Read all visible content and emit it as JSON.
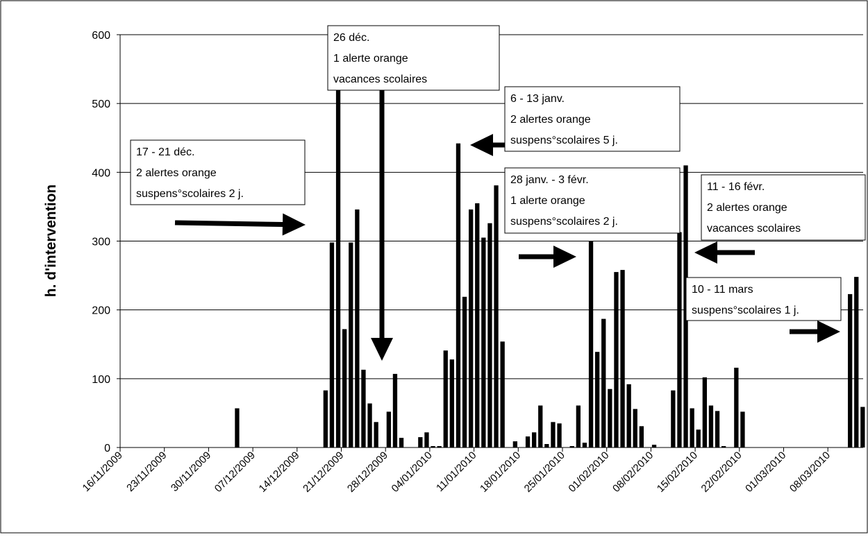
{
  "chart_data": {
    "type": "bar",
    "title": "",
    "xlabel": "",
    "ylabel": "h. d'intervention",
    "ylim": [
      0,
      600
    ],
    "yticks": [
      0,
      100,
      200,
      300,
      400,
      500,
      600
    ],
    "x_start": "16/11/2009",
    "x_end": "14/03/2010",
    "grid": "horizontal",
    "legend": "none",
    "bar_color": "#000000",
    "xtick_labels": [
      "16/11/2009",
      "23/11/2009",
      "30/11/2009",
      "07/12/2009",
      "14/12/2009",
      "21/12/2009",
      "28/12/2009",
      "04/01/2010",
      "11/01/2010",
      "18/01/2010",
      "25/01/2010",
      "01/02/2010",
      "08/02/2010",
      "15/02/2010",
      "22/02/2010",
      "01/03/2010",
      "08/03/2010"
    ],
    "bars": [
      {
        "date": "04/12/2009",
        "value": 57
      },
      {
        "date": "18/12/2009",
        "value": 83
      },
      {
        "date": "19/12/2009",
        "value": 298
      },
      {
        "date": "20/12/2009",
        "value": 538
      },
      {
        "date": "21/12/2009",
        "value": 172
      },
      {
        "date": "22/12/2009",
        "value": 298
      },
      {
        "date": "23/12/2009",
        "value": 346
      },
      {
        "date": "24/12/2009",
        "value": 113
      },
      {
        "date": "25/12/2009",
        "value": 64
      },
      {
        "date": "26/12/2009",
        "value": 37
      },
      {
        "date": "28/12/2009",
        "value": 52
      },
      {
        "date": "29/12/2009",
        "value": 107
      },
      {
        "date": "30/12/2009",
        "value": 14
      },
      {
        "date": "02/01/2010",
        "value": 15
      },
      {
        "date": "03/01/2010",
        "value": 22
      },
      {
        "date": "04/01/2010",
        "value": 2
      },
      {
        "date": "05/01/2010",
        "value": 2
      },
      {
        "date": "06/01/2010",
        "value": 141
      },
      {
        "date": "07/01/2010",
        "value": 128
      },
      {
        "date": "08/01/2010",
        "value": 442
      },
      {
        "date": "09/01/2010",
        "value": 219
      },
      {
        "date": "10/01/2010",
        "value": 346
      },
      {
        "date": "11/01/2010",
        "value": 355
      },
      {
        "date": "12/01/2010",
        "value": 305
      },
      {
        "date": "13/01/2010",
        "value": 326
      },
      {
        "date": "14/01/2010",
        "value": 381
      },
      {
        "date": "15/01/2010",
        "value": 154
      },
      {
        "date": "17/01/2010",
        "value": 9
      },
      {
        "date": "19/01/2010",
        "value": 16
      },
      {
        "date": "20/01/2010",
        "value": 22
      },
      {
        "date": "21/01/2010",
        "value": 61
      },
      {
        "date": "22/01/2010",
        "value": 5
      },
      {
        "date": "23/01/2010",
        "value": 37
      },
      {
        "date": "24/01/2010",
        "value": 35
      },
      {
        "date": "26/01/2010",
        "value": 2
      },
      {
        "date": "27/01/2010",
        "value": 61
      },
      {
        "date": "28/01/2010",
        "value": 7
      },
      {
        "date": "29/01/2010",
        "value": 300
      },
      {
        "date": "30/01/2010",
        "value": 139
      },
      {
        "date": "31/01/2010",
        "value": 187
      },
      {
        "date": "01/02/2010",
        "value": 85
      },
      {
        "date": "02/02/2010",
        "value": 255
      },
      {
        "date": "03/02/2010",
        "value": 258
      },
      {
        "date": "04/02/2010",
        "value": 92
      },
      {
        "date": "05/02/2010",
        "value": 56
      },
      {
        "date": "06/02/2010",
        "value": 31
      },
      {
        "date": "08/02/2010",
        "value": 4
      },
      {
        "date": "11/02/2010",
        "value": 83
      },
      {
        "date": "12/02/2010",
        "value": 313
      },
      {
        "date": "13/02/2010",
        "value": 410
      },
      {
        "date": "14/02/2010",
        "value": 57
      },
      {
        "date": "15/02/2010",
        "value": 26
      },
      {
        "date": "16/02/2010",
        "value": 102
      },
      {
        "date": "17/02/2010",
        "value": 61
      },
      {
        "date": "18/02/2010",
        "value": 53
      },
      {
        "date": "19/02/2010",
        "value": 2
      },
      {
        "date": "21/02/2010",
        "value": 116
      },
      {
        "date": "22/02/2010",
        "value": 52
      },
      {
        "date": "11/03/2010",
        "value": 223
      },
      {
        "date": "12/03/2010",
        "value": 248
      },
      {
        "date": "13/03/2010",
        "value": 59
      }
    ],
    "annotations": [
      {
        "lines": [
          "17 - 21 déc.",
          "2 alertes orange",
          "suspens°scolaires 2 j."
        ]
      },
      {
        "lines": [
          "26 déc.",
          "1 alerte orange",
          "vacances scolaires"
        ]
      },
      {
        "lines": [
          "6 - 13 janv.",
          "2 alertes orange",
          "suspens°scolaires 5 j."
        ]
      },
      {
        "lines": [
          "28 janv. - 3 févr.",
          "1 alerte orange",
          "suspens°scolaires 2 j."
        ]
      },
      {
        "lines": [
          "11 - 16 févr.",
          "2 alertes orange",
          "vacances scolaires"
        ]
      },
      {
        "lines": [
          "10 - 11 mars",
          "suspens°scolaires 1 j."
        ]
      }
    ]
  }
}
